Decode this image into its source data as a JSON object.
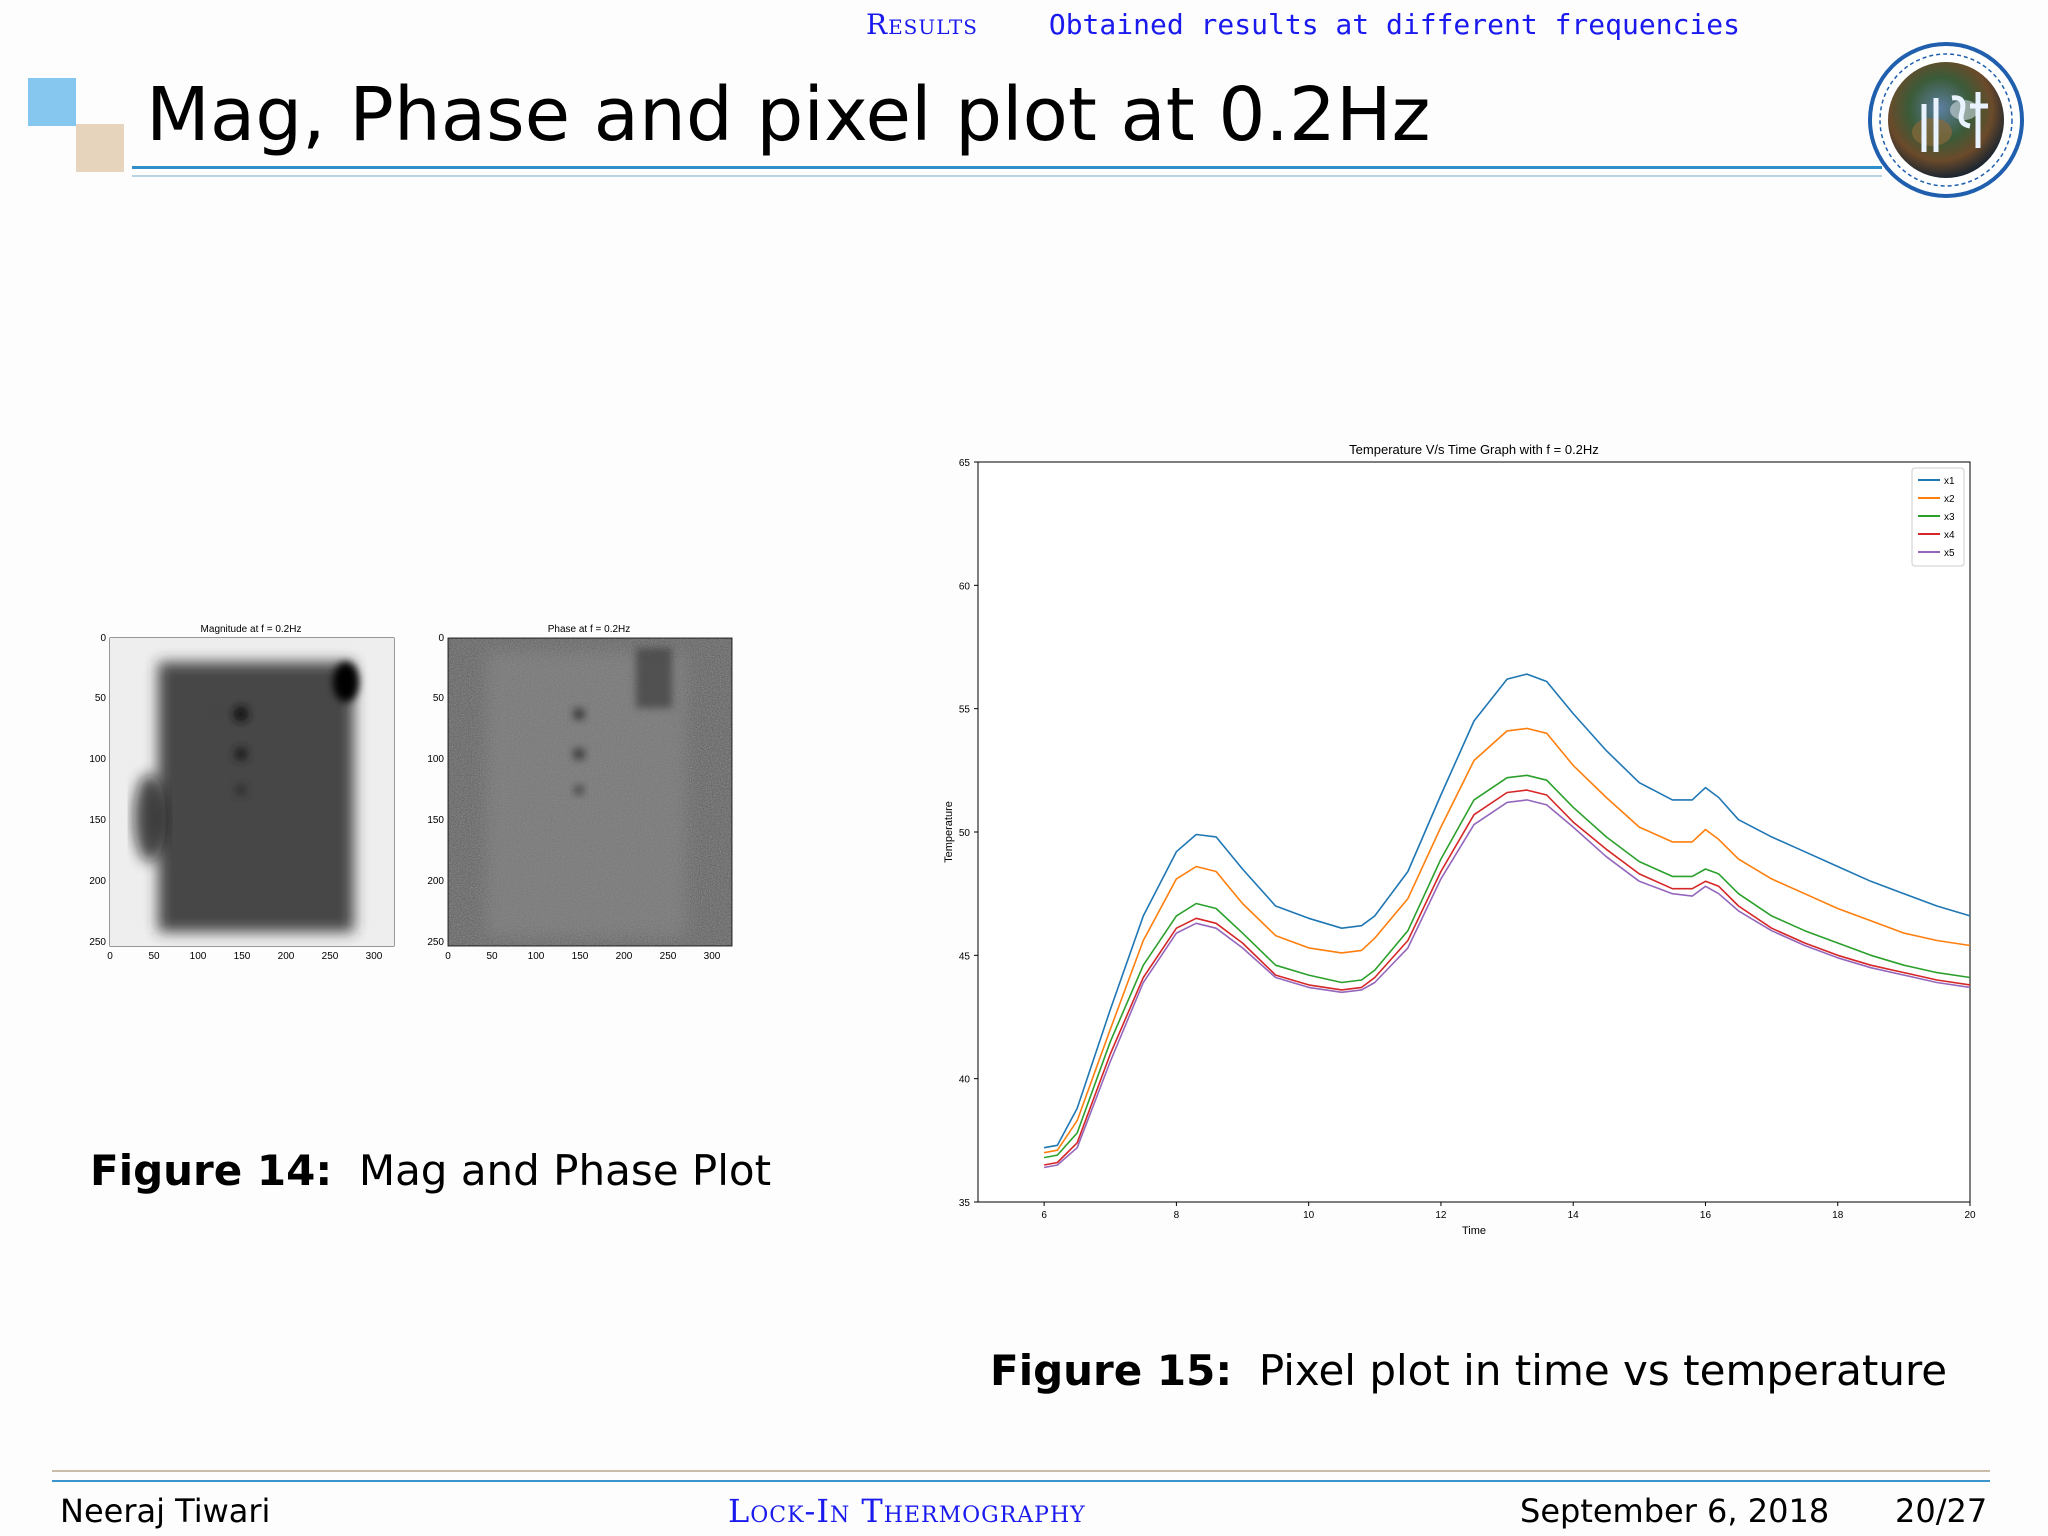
{
  "header": {
    "section": "Results",
    "subsection": "Obtained results at different frequencies",
    "title": "Mag, Phase and pixel plot at 0.2Hz"
  },
  "fig14": {
    "mag_title": "Magnitude at f = 0.2Hz",
    "phase_title": "Phase at f = 0.2Hz",
    "y_ticks": [
      "0",
      "50",
      "100",
      "150",
      "200",
      "250"
    ],
    "x_ticks": [
      "0",
      "50",
      "100",
      "150",
      "200",
      "250",
      "300"
    ],
    "caption_label": "Figure 14:",
    "caption_text": "Mag and Phase Plot"
  },
  "fig15": {
    "caption_label": "Figure 15:",
    "caption_text": "Pixel plot in time vs temperature"
  },
  "footer": {
    "author": "Neeraj Tiwari",
    "talk_title": "Lock-In Thermography",
    "date": "September 6, 2018",
    "page": "20/27"
  },
  "chart_data": {
    "type": "line",
    "title": "Temperature V/s Time Graph with f = 0.2Hz",
    "xlabel": "Time",
    "ylabel": "Temperature",
    "xlim": [
      5,
      20
    ],
    "ylim": [
      35,
      65
    ],
    "x_ticks": [
      6,
      8,
      10,
      12,
      14,
      16,
      18,
      20
    ],
    "y_ticks": [
      35,
      40,
      45,
      50,
      55,
      60,
      65
    ],
    "legend_position": "top-right",
    "grid": false,
    "x": [
      6,
      6.2,
      6.5,
      7,
      7.5,
      8,
      8.3,
      8.6,
      9,
      9.5,
      10,
      10.5,
      10.8,
      11,
      11.5,
      12,
      12.5,
      13,
      13.3,
      13.6,
      14,
      14.5,
      15,
      15.5,
      15.8,
      16,
      16.2,
      16.5,
      17,
      17.5,
      18,
      18.5,
      19,
      19.5,
      20
    ],
    "series": [
      {
        "name": "x1",
        "color": "#1f77b4",
        "values": [
          37.2,
          37.3,
          38.8,
          42.8,
          46.6,
          49.2,
          49.9,
          49.8,
          48.5,
          47,
          46.5,
          46.1,
          46.2,
          46.6,
          48.4,
          51.5,
          54.5,
          56.2,
          56.4,
          56.1,
          54.8,
          53.3,
          52,
          51.3,
          51.3,
          51.8,
          51.4,
          50.5,
          49.8,
          49.2,
          48.6,
          48,
          47.5,
          47,
          46.6
        ]
      },
      {
        "name": "x2",
        "color": "#ff7f0e",
        "values": [
          37,
          37.1,
          38.3,
          42,
          45.6,
          48.1,
          48.6,
          48.4,
          47.1,
          45.8,
          45.3,
          45.1,
          45.2,
          45.7,
          47.3,
          50.2,
          52.9,
          54.1,
          54.2,
          54,
          52.7,
          51.4,
          50.2,
          49.6,
          49.6,
          50.1,
          49.7,
          48.9,
          48.1,
          47.5,
          46.9,
          46.4,
          45.9,
          45.6,
          45.4
        ]
      },
      {
        "name": "x3",
        "color": "#2ca02c",
        "values": [
          36.8,
          36.9,
          37.8,
          41.5,
          44.6,
          46.6,
          47.1,
          46.9,
          45.9,
          44.6,
          44.2,
          43.9,
          44,
          44.4,
          46,
          48.9,
          51.3,
          52.2,
          52.3,
          52.1,
          51,
          49.8,
          48.8,
          48.2,
          48.2,
          48.5,
          48.3,
          47.5,
          46.6,
          46,
          45.5,
          45,
          44.6,
          44.3,
          44.1
        ]
      },
      {
        "name": "x4",
        "color": "#d62728",
        "values": [
          36.5,
          36.6,
          37.4,
          41,
          44.1,
          46.1,
          46.5,
          46.3,
          45.5,
          44.2,
          43.8,
          43.6,
          43.7,
          44.1,
          45.6,
          48.4,
          50.7,
          51.6,
          51.7,
          51.5,
          50.4,
          49.3,
          48.3,
          47.7,
          47.7,
          48,
          47.8,
          47,
          46.1,
          45.5,
          45,
          44.6,
          44.3,
          44,
          43.8
        ]
      },
      {
        "name": "x5",
        "color": "#9467bd",
        "values": [
          36.4,
          36.5,
          37.2,
          40.7,
          43.9,
          45.9,
          46.3,
          46.1,
          45.3,
          44.1,
          43.7,
          43.5,
          43.6,
          43.9,
          45.3,
          48.1,
          50.3,
          51.2,
          51.3,
          51.1,
          50.2,
          49,
          48,
          47.5,
          47.4,
          47.8,
          47.5,
          46.8,
          46,
          45.4,
          44.9,
          44.5,
          44.2,
          43.9,
          43.7
        ]
      }
    ]
  }
}
